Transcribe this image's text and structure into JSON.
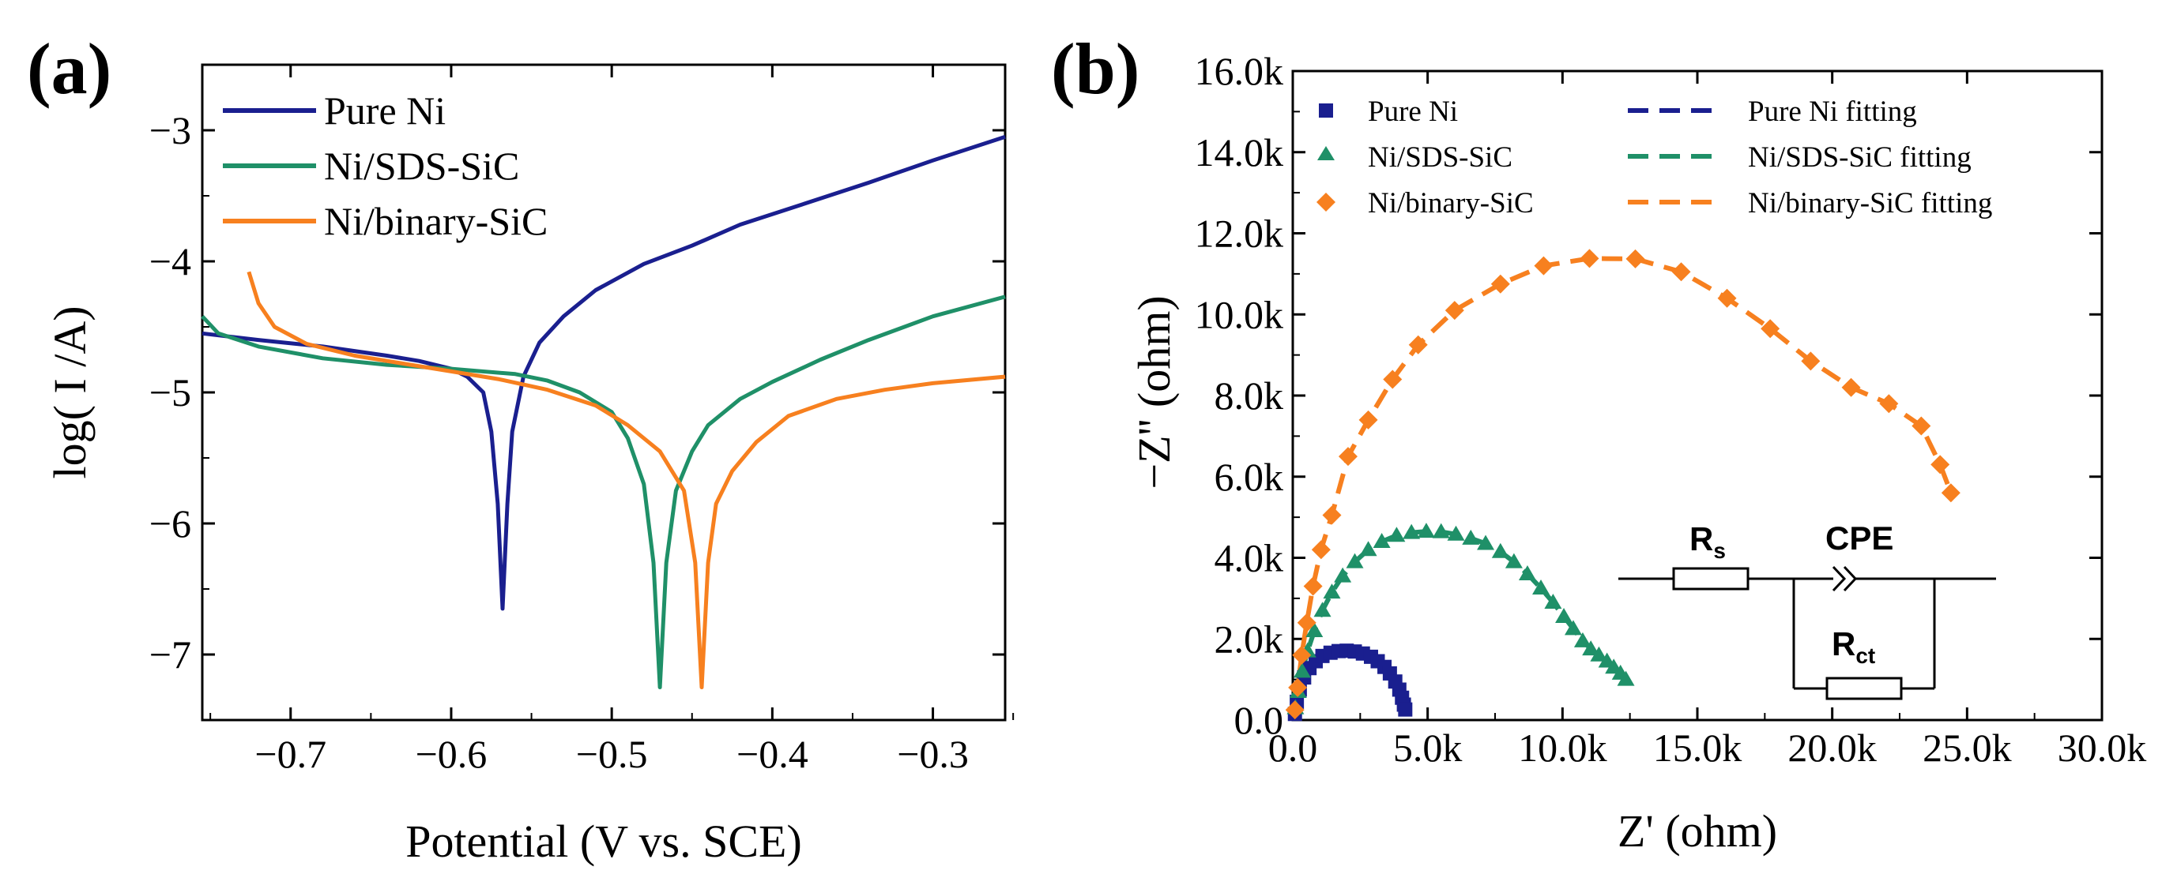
{
  "chart_data": [
    {
      "id": "a",
      "panel_label": "(a)",
      "type": "line",
      "title": "",
      "xlabel": "Potential (V vs. SCE)",
      "ylabel": "log( I /A)",
      "xlim": [
        -0.755,
        -0.255
      ],
      "ylim": [
        -7.5,
        -2.5
      ],
      "xticks": [
        -0.7,
        -0.6,
        -0.5,
        -0.4,
        -0.3
      ],
      "xtick_labels": [
        "−0.7",
        "−0.6",
        "−0.5",
        "−0.4",
        "−0.3"
      ],
      "yticks": [
        -7,
        -6,
        -5,
        -4,
        -3
      ],
      "ytick_labels": [
        "−7",
        "−6",
        "−5",
        "−4",
        "−3"
      ],
      "legend_position": "top-left",
      "series": [
        {
          "name": "Pure Ni",
          "color": "#1a1f8f",
          "points": [
            [
              -0.755,
              -4.55
            ],
            [
              -0.72,
              -4.6
            ],
            [
              -0.68,
              -4.65
            ],
            [
              -0.64,
              -4.72
            ],
            [
              -0.62,
              -4.76
            ],
            [
              -0.6,
              -4.82
            ],
            [
              -0.59,
              -4.88
            ],
            [
              -0.58,
              -5.0
            ],
            [
              -0.575,
              -5.3
            ],
            [
              -0.571,
              -5.85
            ],
            [
              -0.568,
              -6.65
            ],
            [
              -0.565,
              -5.85
            ],
            [
              -0.562,
              -5.3
            ],
            [
              -0.555,
              -4.88
            ],
            [
              -0.545,
              -4.62
            ],
            [
              -0.53,
              -4.42
            ],
            [
              -0.51,
              -4.22
            ],
            [
              -0.48,
              -4.02
            ],
            [
              -0.45,
              -3.88
            ],
            [
              -0.42,
              -3.72
            ],
            [
              -0.38,
              -3.56
            ],
            [
              -0.34,
              -3.4
            ],
            [
              -0.3,
              -3.23
            ],
            [
              -0.255,
              -3.05
            ]
          ]
        },
        {
          "name": "Ni/SDS-SiC",
          "color": "#1f9068",
          "points": [
            [
              -0.755,
              -4.42
            ],
            [
              -0.745,
              -4.55
            ],
            [
              -0.72,
              -4.65
            ],
            [
              -0.68,
              -4.74
            ],
            [
              -0.64,
              -4.79
            ],
            [
              -0.6,
              -4.82
            ],
            [
              -0.56,
              -4.86
            ],
            [
              -0.54,
              -4.91
            ],
            [
              -0.52,
              -5.0
            ],
            [
              -0.5,
              -5.15
            ],
            [
              -0.49,
              -5.35
            ],
            [
              -0.48,
              -5.7
            ],
            [
              -0.474,
              -6.3
            ],
            [
              -0.47,
              -7.25
            ],
            [
              -0.466,
              -6.3
            ],
            [
              -0.46,
              -5.75
            ],
            [
              -0.45,
              -5.45
            ],
            [
              -0.44,
              -5.25
            ],
            [
              -0.42,
              -5.05
            ],
            [
              -0.4,
              -4.92
            ],
            [
              -0.37,
              -4.75
            ],
            [
              -0.34,
              -4.6
            ],
            [
              -0.3,
              -4.42
            ],
            [
              -0.255,
              -4.27
            ]
          ]
        },
        {
          "name": "Ni/binary-SiC",
          "color": "#f7801f",
          "points": [
            [
              -0.726,
              -4.08
            ],
            [
              -0.72,
              -4.32
            ],
            [
              -0.71,
              -4.5
            ],
            [
              -0.69,
              -4.63
            ],
            [
              -0.66,
              -4.72
            ],
            [
              -0.63,
              -4.78
            ],
            [
              -0.6,
              -4.84
            ],
            [
              -0.57,
              -4.9
            ],
            [
              -0.54,
              -4.98
            ],
            [
              -0.51,
              -5.1
            ],
            [
              -0.49,
              -5.25
            ],
            [
              -0.47,
              -5.45
            ],
            [
              -0.455,
              -5.75
            ],
            [
              -0.448,
              -6.3
            ],
            [
              -0.444,
              -7.25
            ],
            [
              -0.44,
              -6.3
            ],
            [
              -0.435,
              -5.85
            ],
            [
              -0.425,
              -5.6
            ],
            [
              -0.41,
              -5.38
            ],
            [
              -0.39,
              -5.18
            ],
            [
              -0.36,
              -5.05
            ],
            [
              -0.33,
              -4.98
            ],
            [
              -0.3,
              -4.93
            ],
            [
              -0.255,
              -4.88
            ]
          ]
        }
      ]
    },
    {
      "id": "b",
      "panel_label": "(b)",
      "type": "scatter",
      "title": "",
      "xlabel": "Z' (ohm)",
      "ylabel": "−Z'' (ohm)",
      "xlim": [
        0,
        30000
      ],
      "ylim": [
        0,
        16000
      ],
      "xticks": [
        0,
        5000,
        10000,
        15000,
        20000,
        25000,
        30000
      ],
      "xtick_labels": [
        "0.0",
        "5.0k",
        "10.0k",
        "15.0k",
        "20.0k",
        "25.0k",
        "30.0k"
      ],
      "yticks": [
        0,
        2000,
        4000,
        6000,
        8000,
        10000,
        12000,
        14000,
        16000
      ],
      "ytick_labels": [
        "0.0",
        "2.0k",
        "4.0k",
        "6.0k",
        "8.0k",
        "10.0k",
        "12.0k",
        "14.0k",
        "16.0k"
      ],
      "legend_position": "top-left",
      "legend": [
        {
          "label": "Pure Ni",
          "marker": "square",
          "color": "#1a1f8f"
        },
        {
          "label": "Ni/SDS-SiC",
          "marker": "triangle",
          "color": "#1f9068"
        },
        {
          "label": "Ni/binary-SiC",
          "marker": "diamond",
          "color": "#f7801f"
        },
        {
          "label": "Pure Ni fitting",
          "marker": "dash",
          "color": "#1a1f8f"
        },
        {
          "label": "Ni/SDS-SiC fitting",
          "marker": "dash",
          "color": "#1f9068"
        },
        {
          "label": "Ni/binary-SiC fitting",
          "marker": "dash",
          "color": "#f7801f"
        }
      ],
      "series": [
        {
          "name": "Pure Ni",
          "marker": "square",
          "color": "#1a1f8f",
          "points": [
            [
              80,
              150
            ],
            [
              150,
              450
            ],
            [
              260,
              750
            ],
            [
              420,
              1050
            ],
            [
              620,
              1280
            ],
            [
              850,
              1450
            ],
            [
              1100,
              1580
            ],
            [
              1400,
              1660
            ],
            [
              1700,
              1700
            ],
            [
              2000,
              1710
            ],
            [
              2300,
              1690
            ],
            [
              2600,
              1640
            ],
            [
              2900,
              1560
            ],
            [
              3150,
              1450
            ],
            [
              3400,
              1310
            ],
            [
              3600,
              1150
            ],
            [
              3800,
              950
            ],
            [
              3950,
              750
            ],
            [
              4050,
              550
            ],
            [
              4120,
              380
            ],
            [
              4170,
              260
            ]
          ]
        },
        {
          "name": "Ni/SDS-SiC",
          "marker": "triangle",
          "color": "#1f9068",
          "points": [
            [
              100,
              300
            ],
            [
              200,
              700
            ],
            [
              350,
              1200
            ],
            [
              550,
              1700
            ],
            [
              800,
              2200
            ],
            [
              1100,
              2700
            ],
            [
              1450,
              3150
            ],
            [
              1850,
              3550
            ],
            [
              2300,
              3900
            ],
            [
              2800,
              4200
            ],
            [
              3300,
              4400
            ],
            [
              3850,
              4550
            ],
            [
              4400,
              4620
            ],
            [
              4950,
              4650
            ],
            [
              5500,
              4640
            ],
            [
              6050,
              4580
            ],
            [
              6600,
              4480
            ],
            [
              7150,
              4350
            ],
            [
              7700,
              4150
            ],
            [
              8200,
              3900
            ],
            [
              8700,
              3600
            ],
            [
              9200,
              3250
            ],
            [
              9650,
              2900
            ],
            [
              10050,
              2550
            ],
            [
              10400,
              2250
            ],
            [
              10750,
              1950
            ],
            [
              11050,
              1750
            ],
            [
              11350,
              1600
            ],
            [
              11650,
              1450
            ],
            [
              11900,
              1300
            ],
            [
              12150,
              1150
            ],
            [
              12350,
              1000
            ]
          ]
        },
        {
          "name": "Ni/binary-SiC",
          "marker": "diamond",
          "color": "#f7801f",
          "points": [
            [
              80,
              250
            ],
            [
              180,
              800
            ],
            [
              330,
              1600
            ],
            [
              520,
              2400
            ],
            [
              750,
              3300
            ],
            [
              1050,
              4200
            ],
            [
              1450,
              5050
            ],
            [
              2050,
              6500
            ],
            [
              2800,
              7400
            ],
            [
              3700,
              8400
            ],
            [
              4650,
              9250
            ],
            [
              6000,
              10100
            ],
            [
              7700,
              10750
            ],
            [
              9300,
              11200
            ],
            [
              11000,
              11380
            ],
            [
              12700,
              11370
            ],
            [
              14400,
              11050
            ],
            [
              16100,
              10400
            ],
            [
              17700,
              9650
            ],
            [
              19200,
              8850
            ],
            [
              20700,
              8200
            ],
            [
              22100,
              7800
            ],
            [
              23300,
              7250
            ],
            [
              24000,
              6300
            ],
            [
              24400,
              5600
            ]
          ]
        }
      ]
    }
  ],
  "circuit": {
    "rs_main": "R",
    "rs_sub": "s",
    "cpe": "CPE",
    "rct_main": "R",
    "rct_sub": "ct"
  }
}
